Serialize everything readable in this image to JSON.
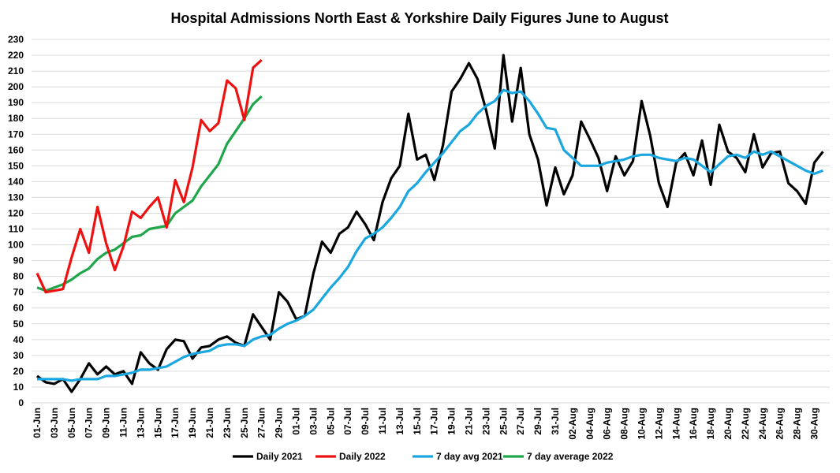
{
  "chart_data": {
    "type": "line",
    "title": "Hospital Admissions North East & Yorkshire Daily Figures June to August",
    "xlabel": "",
    "ylabel": "",
    "ylim": [
      0,
      230
    ],
    "y_ticks": [
      0,
      10,
      20,
      30,
      40,
      50,
      60,
      70,
      80,
      90,
      100,
      110,
      120,
      130,
      140,
      150,
      160,
      170,
      180,
      190,
      200,
      210,
      220,
      230
    ],
    "x_tick_labels": [
      "01-Jun",
      "03-Jun",
      "05-Jun",
      "07-Jun",
      "09-Jun",
      "11-Jun",
      "13-Jun",
      "15-Jun",
      "17-Jun",
      "19-Jun",
      "21-Jun",
      "23-Jun",
      "25-Jun",
      "27-Jun",
      "29-Jun",
      "01-Jul",
      "03-Jul",
      "05-Jul",
      "07-Jul",
      "09-Jul",
      "11-Jul",
      "13-Jul",
      "15-Jul",
      "17-Jul",
      "19-Jul",
      "21-Jul",
      "23-Jul",
      "25-Jul",
      "27-Jul",
      "29-Jul",
      "31-Jul",
      "02-Aug",
      "04-Aug",
      "06-Aug",
      "08-Aug",
      "10-Aug",
      "12-Aug",
      "14-Aug",
      "16-Aug",
      "18-Aug",
      "20-Aug",
      "22-Aug",
      "24-Aug",
      "26-Aug",
      "28-Aug",
      "30-Aug"
    ],
    "x_range": [
      "01-Jun",
      "31-Aug"
    ],
    "grid": "horizontal",
    "legend_position": "bottom",
    "series": [
      {
        "name": "Daily 2021",
        "color": "#000000",
        "values": [
          17,
          13,
          12,
          15,
          7,
          15,
          25,
          18,
          23,
          18,
          20,
          12,
          32,
          25,
          21,
          34,
          40,
          39,
          28,
          35,
          36,
          40,
          42,
          38,
          36,
          56,
          48,
          40,
          70,
          64,
          53,
          55,
          82,
          102,
          95,
          107,
          111,
          121,
          113,
          103,
          127,
          142,
          150,
          183,
          154,
          157,
          141,
          163,
          197,
          205,
          215,
          205,
          185,
          161,
          220,
          178,
          212,
          170,
          154,
          125,
          149,
          132,
          144,
          178,
          167,
          155,
          134,
          156,
          144,
          153,
          191,
          169,
          139,
          124,
          152,
          158,
          144,
          166,
          138,
          176,
          159,
          155,
          146,
          170,
          149,
          158,
          159,
          139,
          134,
          126,
          152,
          159
        ]
      },
      {
        "name": "Daily 2022",
        "color": "#EE1111",
        "values": [
          82,
          70,
          71,
          72,
          92,
          110,
          95,
          124,
          101,
          84,
          99,
          121,
          117,
          124,
          130,
          111,
          141,
          127,
          149,
          179,
          172,
          177,
          204,
          199,
          179,
          212,
          217
        ]
      },
      {
        "name": "7 day avg 2021",
        "color": "#1AA7E0",
        "values": [
          15,
          15,
          15,
          15,
          14,
          15,
          15,
          15,
          17,
          17,
          18,
          19,
          21,
          21,
          22,
          23,
          26,
          29,
          31,
          32,
          33,
          36,
          37,
          37,
          36,
          40,
          42,
          43,
          47,
          50,
          52,
          55,
          59,
          66,
          73,
          79,
          86,
          96,
          104,
          107,
          111,
          117,
          124,
          134,
          139,
          146,
          152,
          158,
          165,
          172,
          176,
          183,
          188,
          191,
          198,
          196,
          197,
          191,
          183,
          174,
          173,
          160,
          155,
          150,
          150,
          150,
          152,
          153,
          154,
          156,
          157,
          157,
          155,
          154,
          153,
          155,
          154,
          150,
          146,
          151,
          156,
          157,
          155,
          159,
          157,
          159,
          156,
          153,
          150,
          147,
          145,
          147
        ]
      },
      {
        "name": "7 day average 2022",
        "color": "#1FA64A",
        "values": [
          73,
          71,
          73,
          75,
          78,
          82,
          85,
          91,
          95,
          97,
          101,
          105,
          106,
          110,
          111,
          112,
          120,
          124,
          128,
          137,
          144,
          151,
          164,
          172,
          180,
          189,
          194
        ]
      }
    ]
  }
}
